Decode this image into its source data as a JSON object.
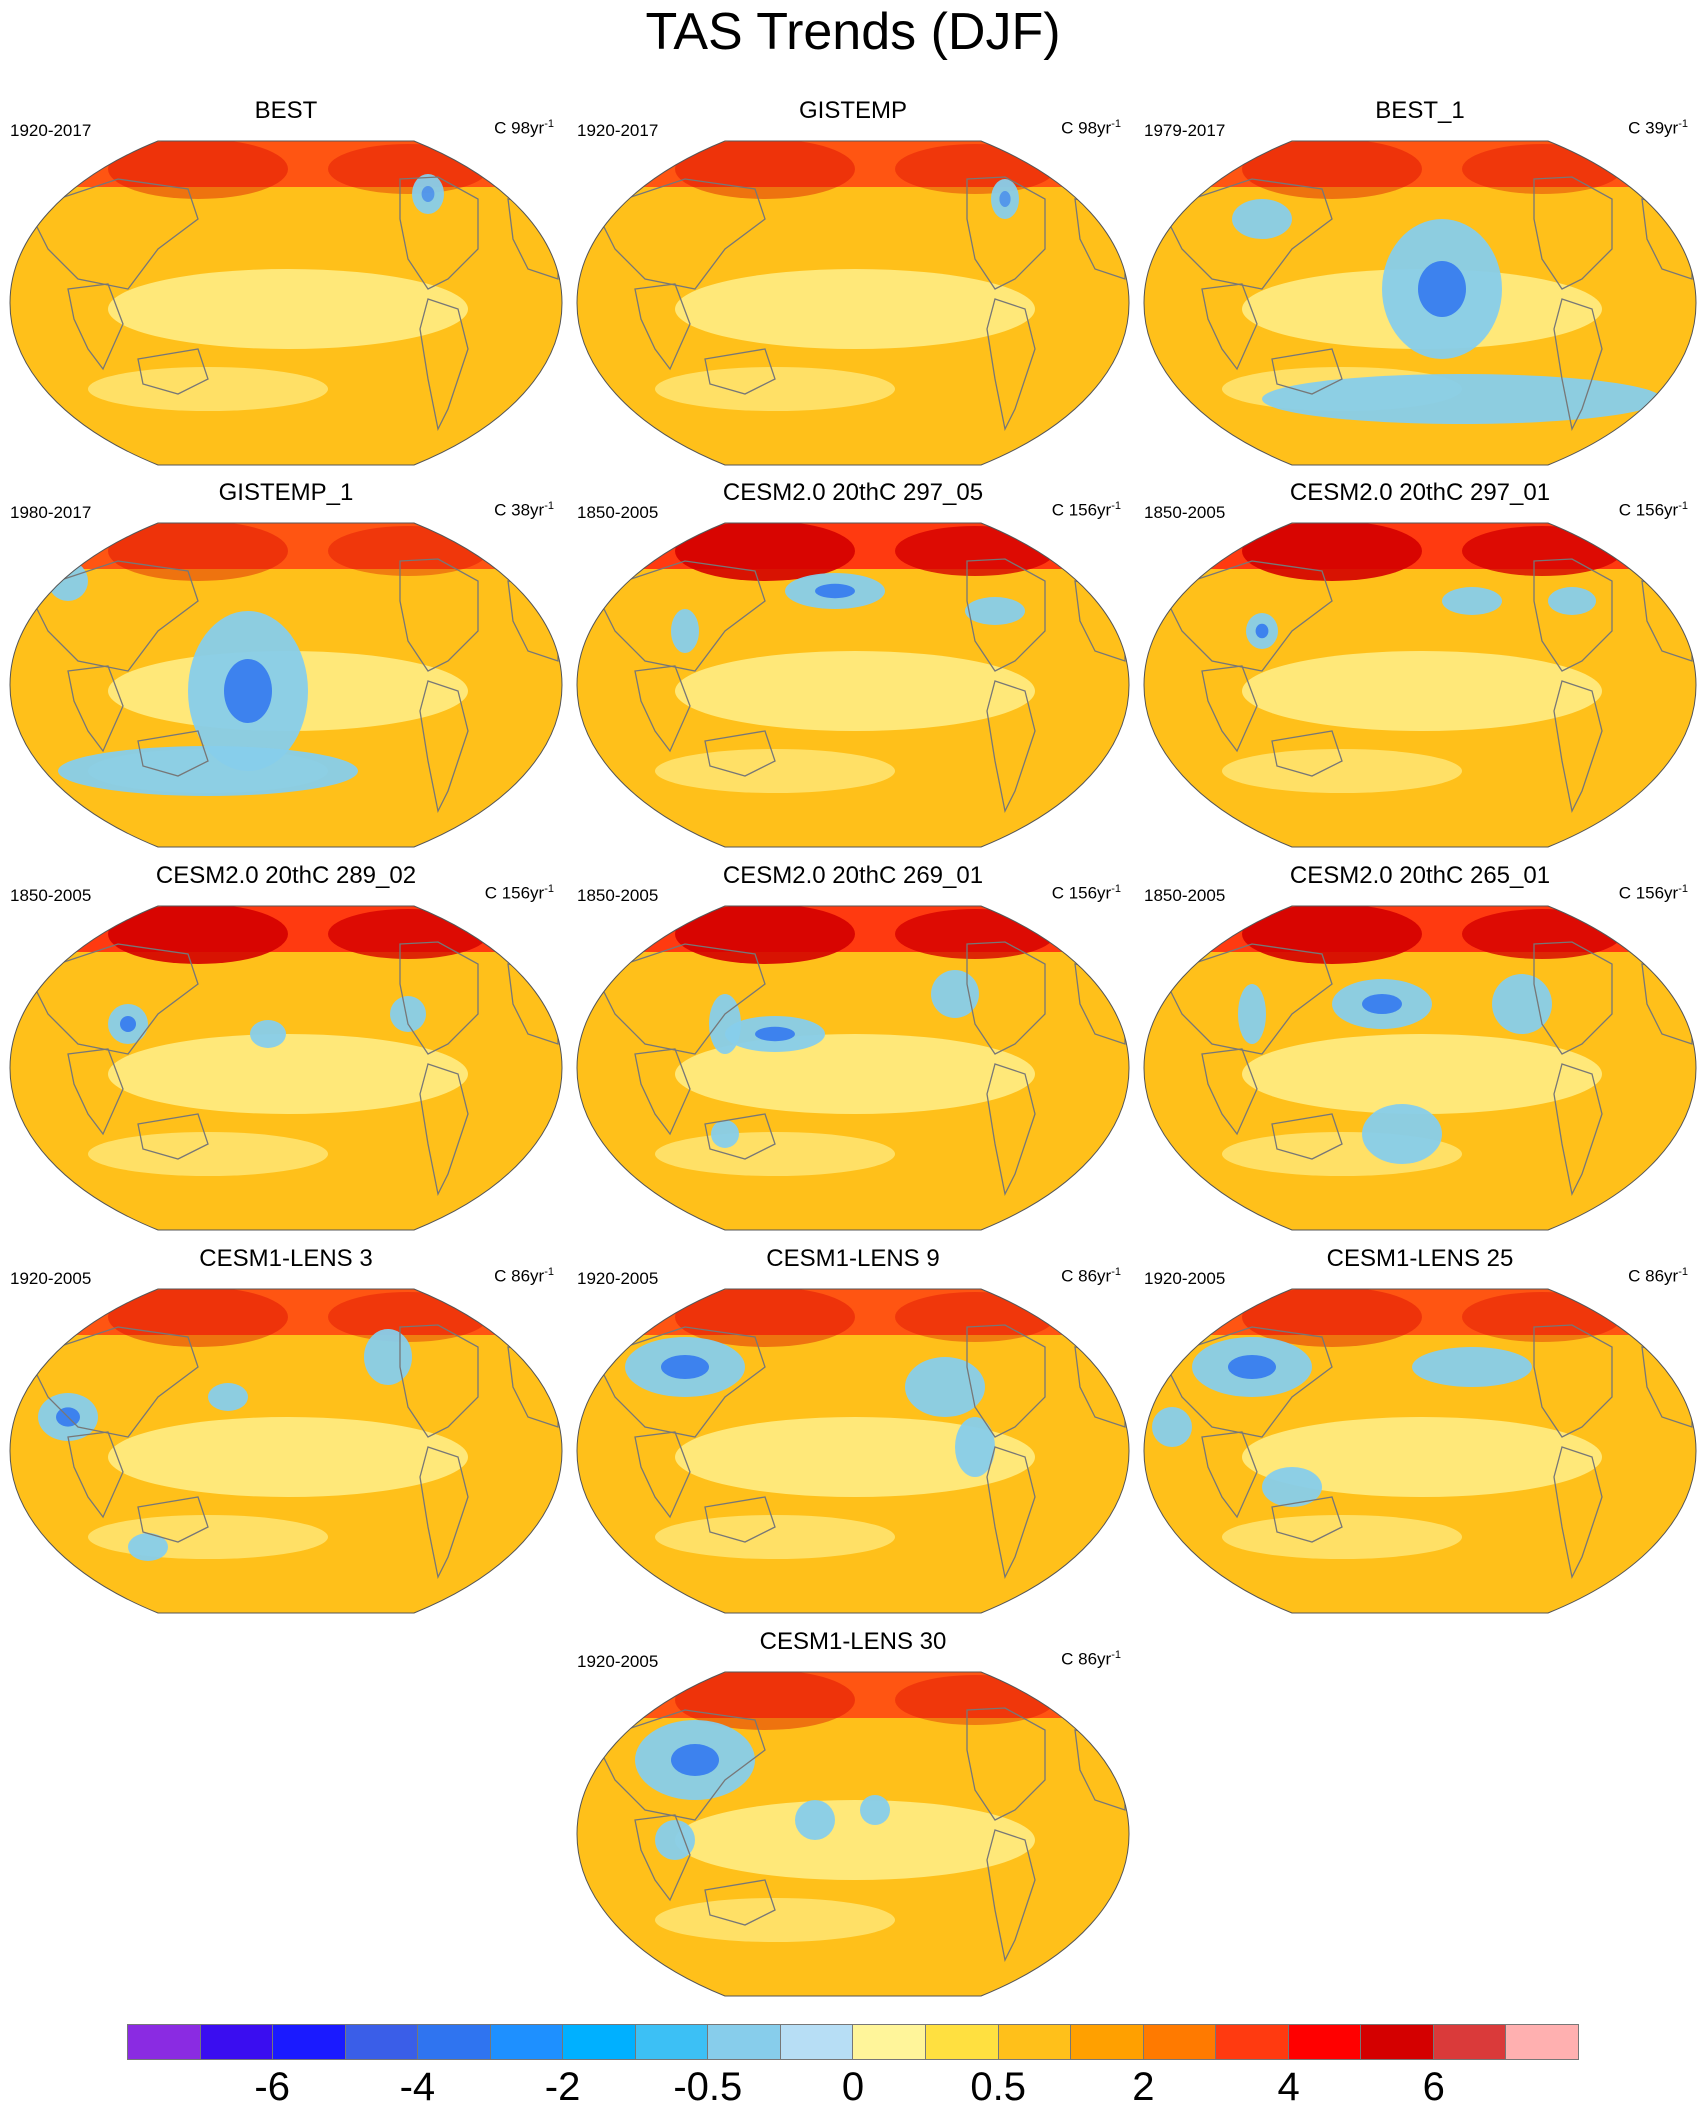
{
  "title": "TAS Trends (DJF)",
  "panels": [
    {
      "title": "BEST",
      "period": "1920-2017",
      "units_base": "C 98yr",
      "units_exp": "-1"
    },
    {
      "title": "GISTEMP",
      "period": "1920-2017",
      "units_base": "C 98yr",
      "units_exp": "-1"
    },
    {
      "title": "BEST_1",
      "period": "1979-2017",
      "units_base": "C 39yr",
      "units_exp": "-1"
    },
    {
      "title": "GISTEMP_1",
      "period": "1980-2017",
      "units_base": "C 38yr",
      "units_exp": "-1"
    },
    {
      "title": "CESM2.0 20thC 297_05",
      "period": "1850-2005",
      "units_base": "C 156yr",
      "units_exp": "-1"
    },
    {
      "title": "CESM2.0 20thC 297_01",
      "period": "1850-2005",
      "units_base": "C 156yr",
      "units_exp": "-1"
    },
    {
      "title": "CESM2.0 20thC 289_02",
      "period": "1850-2005",
      "units_base": "C 156yr",
      "units_exp": "-1"
    },
    {
      "title": "CESM2.0 20thC 269_01",
      "period": "1850-2005",
      "units_base": "C 156yr",
      "units_exp": "-1"
    },
    {
      "title": "CESM2.0 20thC 265_01",
      "period": "1850-2005",
      "units_base": "C 156yr",
      "units_exp": "-1"
    },
    {
      "title": "CESM1-LENS 3",
      "period": "1920-2005",
      "units_base": "C 86yr",
      "units_exp": "-1"
    },
    {
      "title": "CESM1-LENS 9",
      "period": "1920-2005",
      "units_base": "C 86yr",
      "units_exp": "-1"
    },
    {
      "title": "CESM1-LENS 25",
      "period": "1920-2005",
      "units_base": "C 86yr",
      "units_exp": "-1"
    },
    {
      "title": "CESM1-LENS 30",
      "period": "1920-2005",
      "units_base": "C 86yr",
      "units_exp": "-1"
    }
  ],
  "colorbar": {
    "colors": [
      "#8a2be2",
      "#3a0df0",
      "#1a1aff",
      "#3a5ee8",
      "#2f74f0",
      "#1e90ff",
      "#00b0ff",
      "#3cc0f5",
      "#87cdeb",
      "#b7def5",
      "#fff59a",
      "#ffe040",
      "#ffc01a",
      "#ffa000",
      "#ff7a00",
      "#ff3a10",
      "#ff0000",
      "#d40000",
      "#da3a3a",
      "#ffb0b0"
    ],
    "labels": [
      "-6",
      "-4",
      "-2",
      "-0.5",
      "0",
      "0.5",
      "2",
      "4",
      "6"
    ]
  },
  "colors": {
    "ocean_base": "#ffc01a",
    "land_outline": "#777777",
    "arctic_warm": "#ff3a10",
    "cool_patch": "#87cdeb",
    "strong_cool": "#2f74f0",
    "mild": "#fff59a"
  }
}
